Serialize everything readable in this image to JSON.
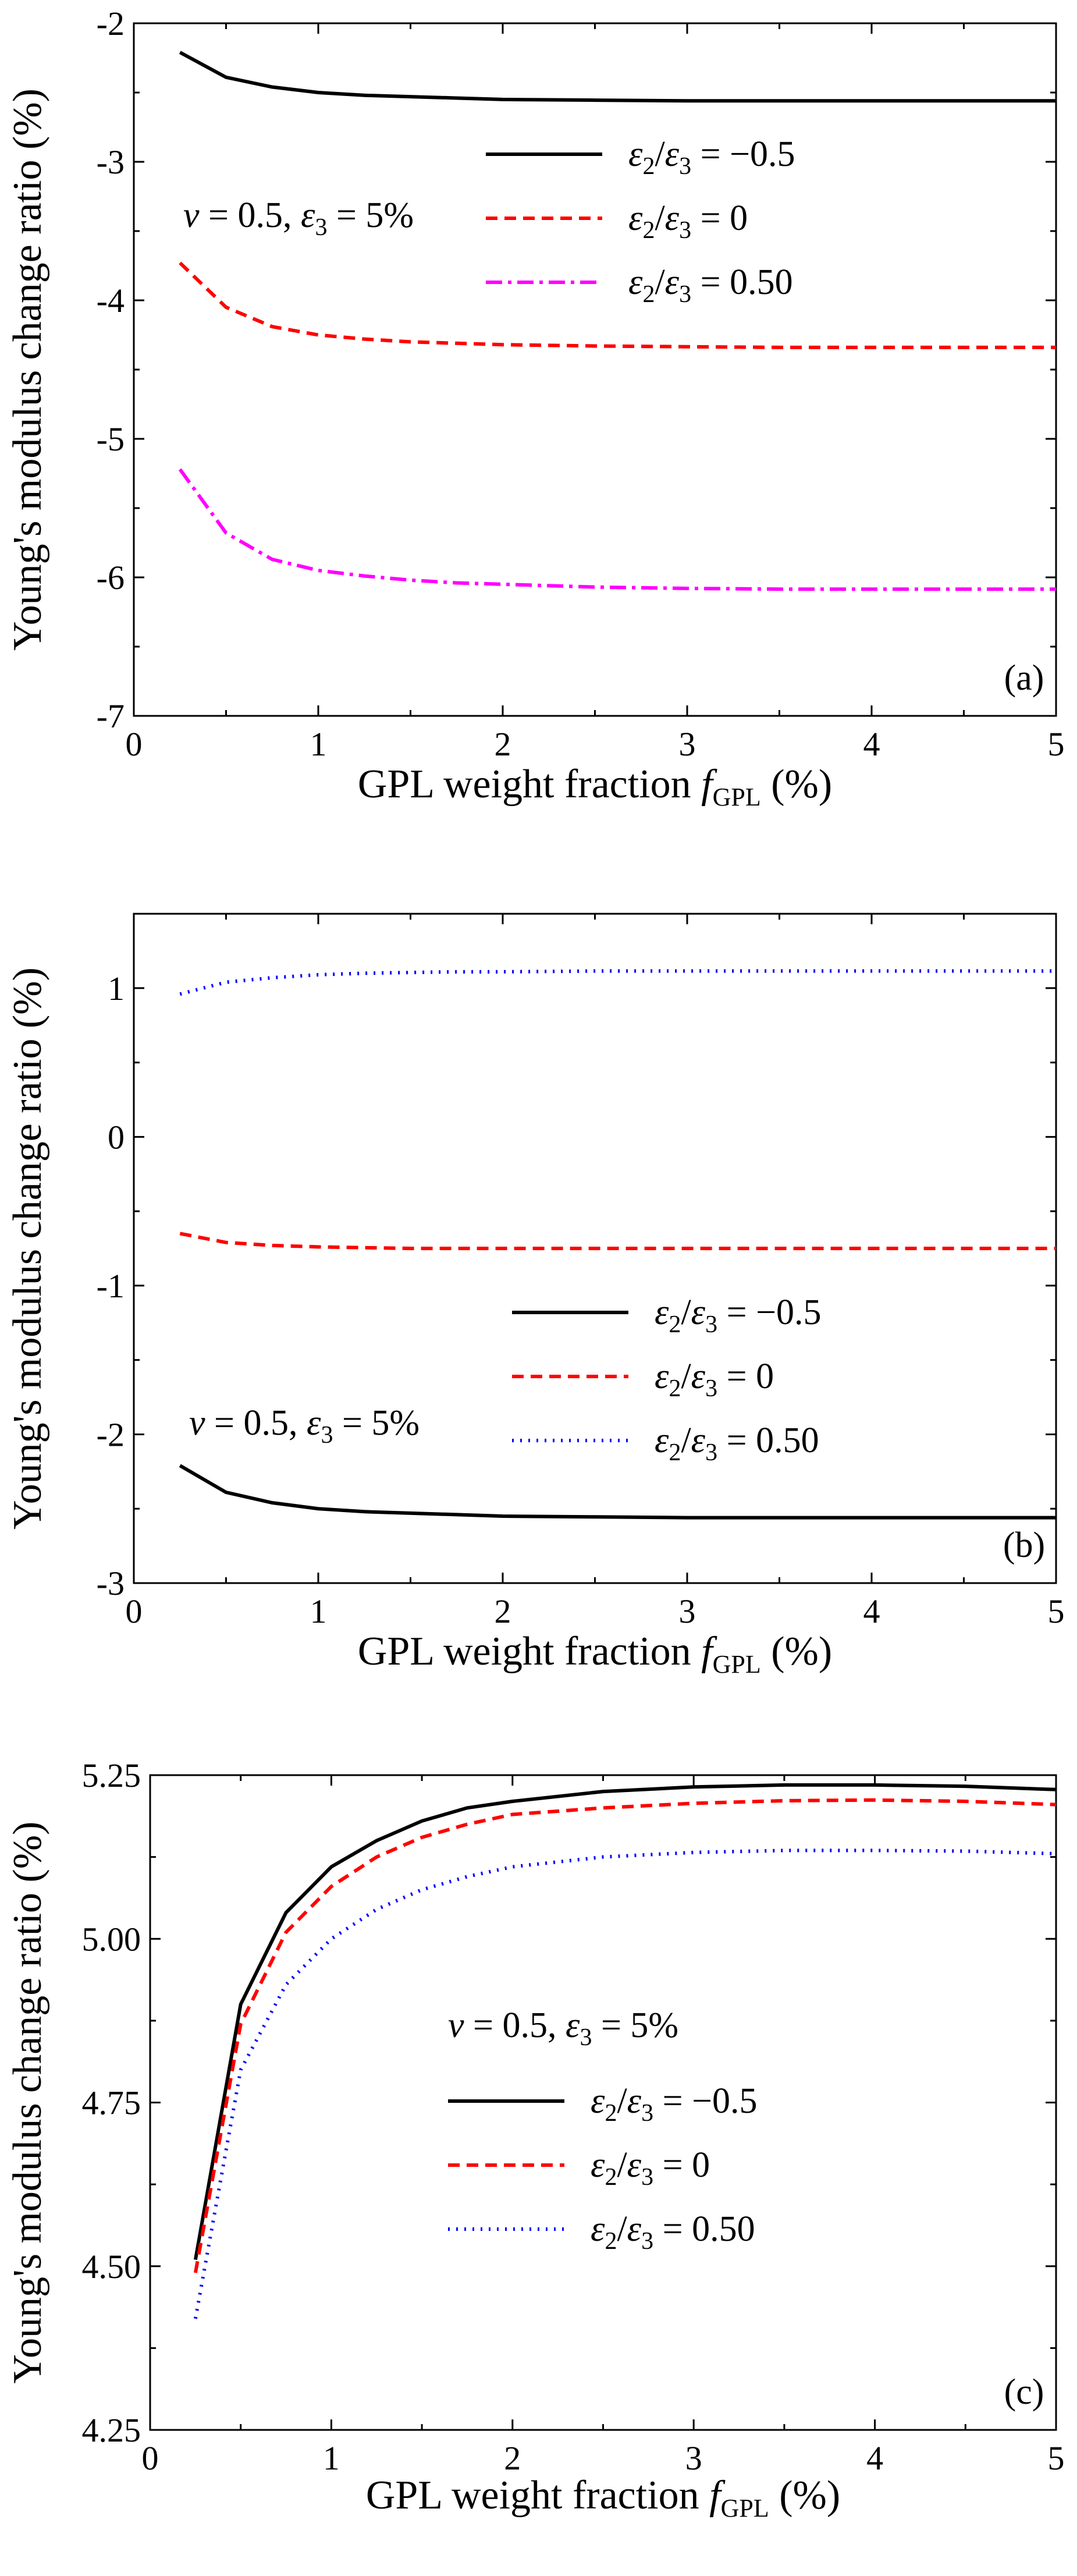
{
  "chart_data": [
    {
      "type": "line",
      "panel": "(a)",
      "xlabel": {
        "main": "GPL weight fraction ",
        "var": "f",
        "sub": "GPL",
        "tail": " (%)"
      },
      "ylabel": "Young's modulus change ratio (%)",
      "xlim": [
        0,
        5
      ],
      "ylim": [
        -7,
        -2
      ],
      "xticks": [
        "0",
        "1",
        "2",
        "3",
        "4",
        "5"
      ],
      "yticks": [
        "-7",
        "-6",
        "-5",
        "-4",
        "-3",
        "-2"
      ],
      "annotation": {
        "nu": "ν",
        "nu_text": " = 0.5,  ",
        "eps": "ε",
        "eps_sub": "3",
        "eps_text": " = 5%"
      },
      "legend_position": "top-right",
      "x": [
        0.25,
        0.5,
        0.75,
        1.0,
        1.25,
        1.5,
        1.75,
        2.0,
        2.5,
        3.0,
        3.5,
        4.0,
        4.5,
        5.0
      ],
      "series": [
        {
          "name": "ε2/ε3 = −0.5",
          "lhs": "ε",
          "lhs_sub": "2",
          "rhs": "ε",
          "rhs_sub": "3",
          "value": " = −0.5",
          "color": "#000000",
          "dash": "",
          "values": [
            -2.21,
            -2.39,
            -2.46,
            -2.5,
            -2.52,
            -2.53,
            -2.54,
            -2.55,
            -2.555,
            -2.56,
            -2.56,
            -2.56,
            -2.56,
            -2.56
          ]
        },
        {
          "name": "ε2/ε3 = 0",
          "lhs": "ε",
          "lhs_sub": "2",
          "rhs": "ε",
          "rhs_sub": "3",
          "value": " = 0",
          "color": "#ff0000",
          "dash": "20,12",
          "values": [
            -3.73,
            -4.05,
            -4.19,
            -4.25,
            -4.28,
            -4.3,
            -4.31,
            -4.32,
            -4.33,
            -4.335,
            -4.34,
            -4.34,
            -4.34,
            -4.34
          ]
        },
        {
          "name": "ε2/ε3 = 0.50",
          "lhs": "ε",
          "lhs_sub": "2",
          "rhs": "ε",
          "rhs_sub": "3",
          "value": " = 0.50",
          "color": "#ff00ff",
          "dash": "28,10,6,10",
          "values": [
            -5.22,
            -5.68,
            -5.87,
            -5.95,
            -5.99,
            -6.02,
            -6.04,
            -6.05,
            -6.07,
            -6.08,
            -6.085,
            -6.085,
            -6.085,
            -6.085
          ]
        }
      ]
    },
    {
      "type": "line",
      "panel": "(b)",
      "xlabel": {
        "main": "GPL weight fraction ",
        "var": "f",
        "sub": "GPL",
        "tail": " (%)"
      },
      "ylabel": "Young's modulus change ratio (%)",
      "xlim": [
        0,
        5
      ],
      "ylim": [
        -3,
        1.5
      ],
      "xticks": [
        "0",
        "1",
        "2",
        "3",
        "4",
        "5"
      ],
      "yticks": [
        "-3",
        "-2",
        "-1",
        "0",
        "1"
      ],
      "ytickvals": [
        -3,
        -2,
        -1,
        0,
        1
      ],
      "annotation": {
        "nu": "ν",
        "nu_text": " = 0.5,  ",
        "eps": "ε",
        "eps_sub": "3",
        "eps_text": " = 5%"
      },
      "legend_position": "bottom-right",
      "x": [
        0.25,
        0.5,
        0.75,
        1.0,
        1.25,
        1.5,
        1.75,
        2.0,
        2.5,
        3.0,
        3.5,
        4.0,
        4.5,
        5.0
      ],
      "series": [
        {
          "name": "ε2/ε3 = −0.5",
          "lhs": "ε",
          "lhs_sub": "2",
          "rhs": "ε",
          "rhs_sub": "3",
          "value": " = −0.5",
          "color": "#000000",
          "dash": "",
          "values": [
            -2.21,
            -2.39,
            -2.46,
            -2.5,
            -2.52,
            -2.53,
            -2.54,
            -2.55,
            -2.555,
            -2.56,
            -2.56,
            -2.56,
            -2.56,
            -2.56
          ]
        },
        {
          "name": "ε2/ε3 = 0",
          "lhs": "ε",
          "lhs_sub": "2",
          "rhs": "ε",
          "rhs_sub": "3",
          "value": " = 0",
          "color": "#ff0000",
          "dash": "20,12",
          "values": [
            -0.65,
            -0.71,
            -0.73,
            -0.74,
            -0.745,
            -0.75,
            -0.75,
            -0.75,
            -0.75,
            -0.75,
            -0.75,
            -0.75,
            -0.75,
            -0.75
          ]
        },
        {
          "name": "ε2/ε3 = 0.50",
          "lhs": "ε",
          "lhs_sub": "2",
          "rhs": "ε",
          "rhs_sub": "3",
          "value": " = 0.50",
          "color": "#0000ff",
          "dash": "3,11",
          "values": [
            0.96,
            1.04,
            1.07,
            1.09,
            1.1,
            1.105,
            1.11,
            1.11,
            1.115,
            1.115,
            1.115,
            1.115,
            1.115,
            1.115
          ]
        }
      ]
    },
    {
      "type": "line",
      "panel": "(c)",
      "xlabel": {
        "main": "GPL weight fraction ",
        "var": "f",
        "sub": "GPL",
        "tail": " (%)"
      },
      "ylabel": "Young's modulus change ratio (%)",
      "xlim": [
        0,
        5
      ],
      "ylim": [
        4.25,
        5.25
      ],
      "xticks": [
        "0",
        "1",
        "2",
        "3",
        "4",
        "5"
      ],
      "yticks": [
        "4.25",
        "4.50",
        "4.75",
        "5.00",
        "5.25"
      ],
      "annotation": {
        "nu": "ν",
        "nu_text": " = 0.5,  ",
        "eps": "ε",
        "eps_sub": "3",
        "eps_text": " = 5%"
      },
      "legend_position": "center",
      "x": [
        0.25,
        0.5,
        0.75,
        1.0,
        1.25,
        1.5,
        1.75,
        2.0,
        2.5,
        3.0,
        3.5,
        4.0,
        4.5,
        5.0
      ],
      "series": [
        {
          "name": "ε2/ε3 = −0.5",
          "lhs": "ε",
          "lhs_sub": "2",
          "rhs": "ε",
          "rhs_sub": "3",
          "value": " = −0.5",
          "color": "#000000",
          "dash": "",
          "values": [
            4.51,
            4.9,
            5.04,
            5.11,
            5.15,
            5.18,
            5.2,
            5.21,
            5.225,
            5.232,
            5.235,
            5.235,
            5.233,
            5.228
          ]
        },
        {
          "name": "ε2/ε3 = 0",
          "lhs": "ε",
          "lhs_sub": "2",
          "rhs": "ε",
          "rhs_sub": "3",
          "value": " = 0",
          "color": "#ff0000",
          "dash": "20,12",
          "values": [
            4.49,
            4.87,
            5.01,
            5.08,
            5.125,
            5.155,
            5.175,
            5.19,
            5.2,
            5.207,
            5.211,
            5.212,
            5.21,
            5.205
          ]
        },
        {
          "name": "ε2/ε3 = 0.50",
          "lhs": "ε",
          "lhs_sub": "2",
          "rhs": "ε",
          "rhs_sub": "3",
          "value": " = 0.50",
          "color": "#0000ff",
          "dash": "3,11",
          "values": [
            4.42,
            4.8,
            4.93,
            5.0,
            5.045,
            5.075,
            5.095,
            5.11,
            5.125,
            5.132,
            5.135,
            5.135,
            5.134,
            5.13
          ]
        }
      ]
    }
  ]
}
